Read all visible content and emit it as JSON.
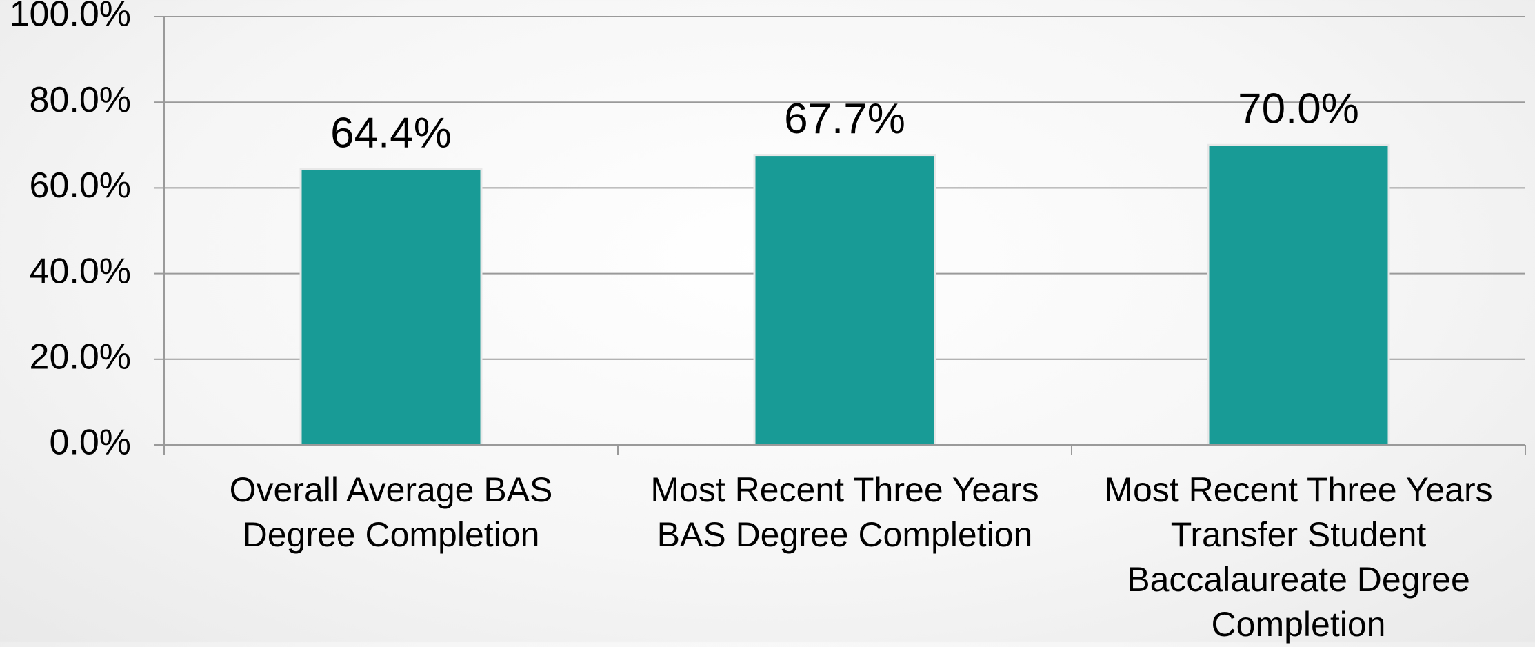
{
  "chart_data": {
    "type": "bar",
    "categories": [
      "Overall Average BAS Degree Completion",
      "Most Recent Three Years BAS Degree Completion",
      "Most Recent Three Years Transfer Student Baccalaureate Degree Completion"
    ],
    "values": [
      64.4,
      67.7,
      70.0
    ],
    "value_labels": [
      "64.4%",
      "67.7%",
      "70.0%"
    ],
    "color": "#189b96",
    "ylim": [
      0,
      100
    ],
    "yticks": [
      {
        "value": 0,
        "label": "0.0%"
      },
      {
        "value": 20,
        "label": "20.0%"
      },
      {
        "value": 40,
        "label": "40.0%"
      },
      {
        "value": 60,
        "label": "60.0%"
      },
      {
        "value": 80,
        "label": "80.0%"
      },
      {
        "value": 100,
        "label": "100.0%"
      }
    ],
    "grid": true
  }
}
